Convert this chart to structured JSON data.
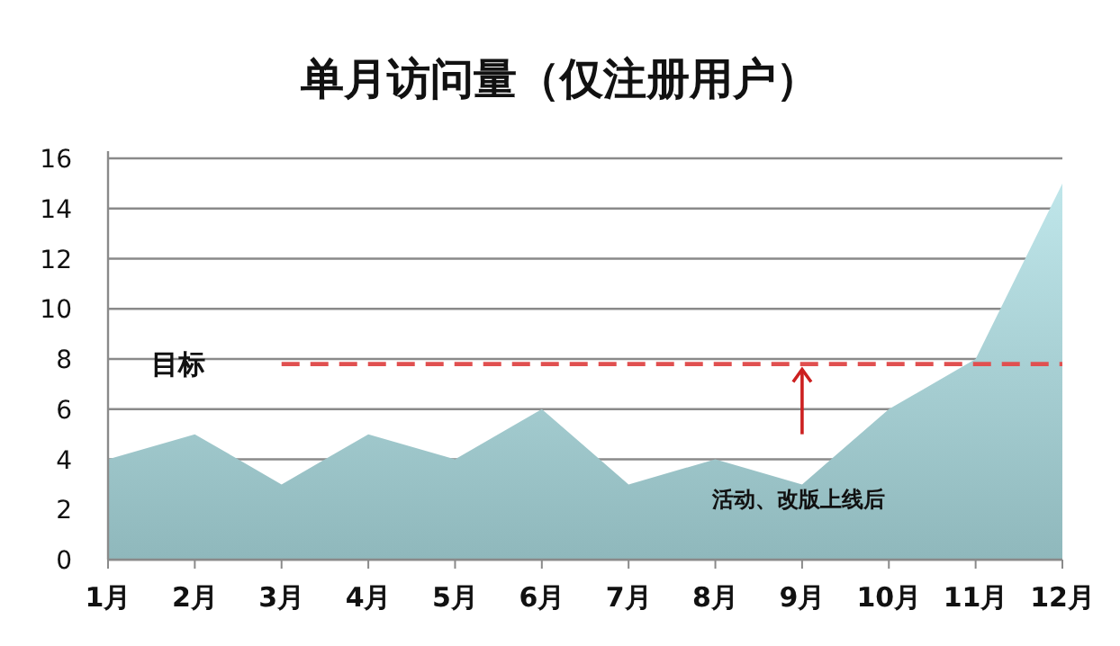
{
  "chart_data": {
    "type": "area",
    "title": "单月访问量（仅注册用户）",
    "categories": [
      "1月",
      "2月",
      "3月",
      "4月",
      "5月",
      "6月",
      "7月",
      "8月",
      "9月",
      "10月",
      "11月",
      "12月"
    ],
    "values": [
      4,
      5,
      3,
      5,
      4,
      6,
      3,
      4,
      3,
      6,
      8,
      15
    ],
    "color": "#8fb8bc",
    "ylim": [
      0,
      16
    ],
    "yticks": [
      0,
      2,
      4,
      6,
      8,
      10,
      12,
      14,
      16
    ],
    "grid": "y",
    "ref_lines": [
      {
        "axis": "y",
        "value": 7.8,
        "label": "目标",
        "color": "#e05050",
        "line_style": "dashed"
      }
    ],
    "annotations": [
      "活动、改版上线后"
    ]
  }
}
